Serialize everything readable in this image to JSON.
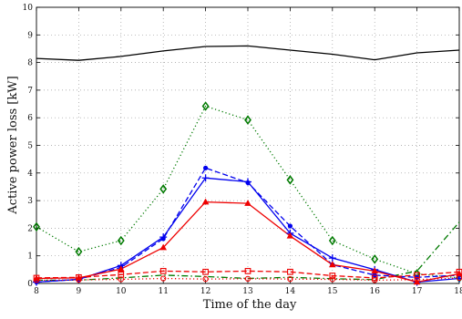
{
  "chart_data": {
    "type": "line",
    "title": "",
    "xlabel": "Time of the day",
    "ylabel": "Active power loss [kW]",
    "xlim": [
      8,
      18
    ],
    "ylim": [
      0,
      10
    ],
    "x_ticks": [
      8,
      9,
      10,
      11,
      12,
      13,
      14,
      15,
      16,
      17,
      18
    ],
    "x_tick_labels": [
      "8",
      "9",
      "10",
      "11",
      "12",
      "13",
      "14",
      "15",
      "16",
      "17",
      "18"
    ],
    "y_ticks": [
      0,
      1,
      2,
      3,
      4,
      5,
      6,
      7,
      8,
      9,
      10
    ],
    "y_tick_labels": [
      "0",
      "1",
      "2",
      "3",
      "4",
      "5",
      "6",
      "7",
      "8",
      "9",
      "10"
    ],
    "grid": true,
    "grid_style": "dotted",
    "legend": "none",
    "x": [
      8,
      9,
      10,
      11,
      12,
      13,
      14,
      15,
      16,
      17,
      18
    ],
    "series": [
      {
        "color": "#000000",
        "line": "solid",
        "marker": "none",
        "values": [
          8.15,
          8.08,
          8.22,
          8.42,
          8.58,
          8.6,
          8.45,
          8.3,
          8.1,
          8.35,
          8.45
        ]
      },
      {
        "color": "#007a00",
        "line": "dotted",
        "marker": "diamond",
        "values": [
          2.05,
          1.15,
          1.55,
          3.42,
          6.42,
          5.92,
          3.75,
          1.55,
          0.88,
          0.35,
          0.2
        ]
      },
      {
        "color": "#007a00",
        "line": "dashdot",
        "marker": "none",
        "values": [
          0.12,
          0.12,
          0.2,
          0.3,
          0.25,
          0.18,
          0.22,
          0.17,
          0.14,
          0.45,
          2.22
        ]
      },
      {
        "color": "#0000ee",
        "line": "dashed",
        "marker": "dot",
        "values": [
          0.05,
          0.15,
          0.58,
          1.62,
          4.18,
          3.65,
          2.08,
          0.68,
          0.3,
          0.22,
          0.3
        ]
      },
      {
        "color": "#0000ee",
        "line": "solid",
        "marker": "plus",
        "values": [
          0.05,
          0.15,
          0.65,
          1.68,
          3.82,
          3.68,
          1.82,
          0.92,
          0.5,
          0.05,
          0.18
        ]
      },
      {
        "color": "#ee0000",
        "line": "solid",
        "marker": "triangle",
        "values": [
          0.18,
          0.2,
          0.52,
          1.3,
          2.95,
          2.9,
          1.72,
          0.68,
          0.45,
          0.05,
          0.35
        ]
      },
      {
        "color": "#ee0000",
        "line": "dashed",
        "marker": "square",
        "values": [
          0.2,
          0.22,
          0.32,
          0.45,
          0.42,
          0.45,
          0.42,
          0.28,
          0.2,
          0.3,
          0.42
        ]
      },
      {
        "color": "#ee0000",
        "line": "dotted",
        "marker": "circle",
        "values": [
          0.12,
          0.13,
          0.15,
          0.18,
          0.16,
          0.17,
          0.16,
          0.15,
          0.12,
          0.14,
          0.2
        ]
      }
    ]
  }
}
